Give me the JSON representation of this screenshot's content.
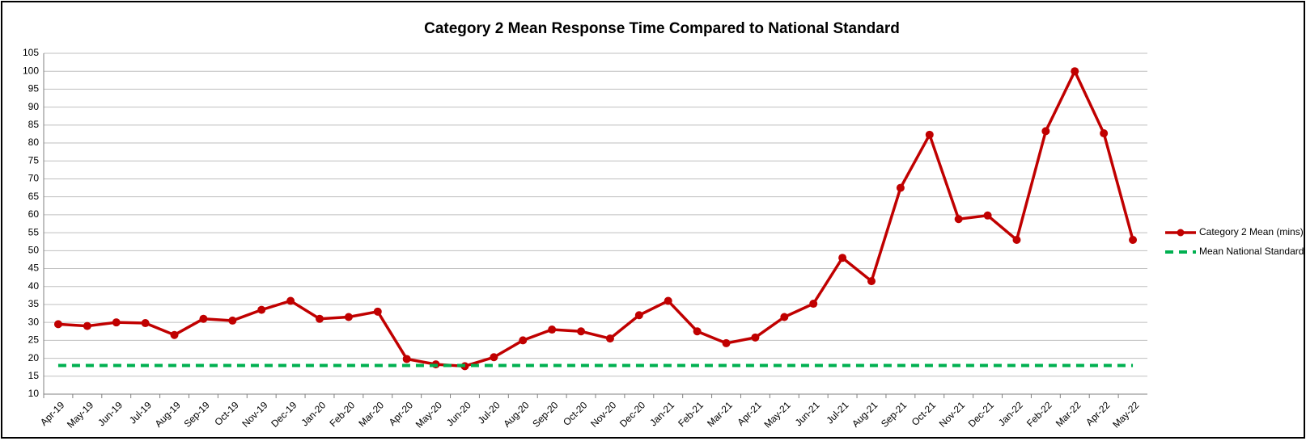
{
  "chart_data": {
    "type": "line",
    "title": "Category 2 Mean Response Time Compared to National Standard",
    "categories": [
      "Apr-19",
      "May-19",
      "Jun-19",
      "Jul-19",
      "Aug-19",
      "Sep-19",
      "Oct-19",
      "Nov-19",
      "Dec-19",
      "Jan-20",
      "Feb-20",
      "Mar-20",
      "Apr-20",
      "May-20",
      "Jun-20",
      "Jul-20",
      "Aug-20",
      "Sep-20",
      "Oct-20",
      "Nov-20",
      "Dec-20",
      "Jan-21",
      "Feb-21",
      "Mar-21",
      "Apr-21",
      "May-21",
      "Jun-21",
      "Jul-21",
      "Aug-21",
      "Sep-21",
      "Oct-21",
      "Nov-21",
      "Dec-21",
      "Jan-22",
      "Feb-22",
      "Mar-22",
      "Apr-22",
      "May-22"
    ],
    "series": [
      {
        "name": "Category 2 Mean (mins)",
        "color": "#c00000",
        "markers": true,
        "dashed": false,
        "values": [
          29.5,
          29,
          30,
          29.8,
          26.5,
          31,
          30.5,
          33.5,
          36,
          31,
          31.5,
          33,
          19.8,
          18.3,
          17.8,
          20.3,
          25,
          28,
          27.5,
          25.5,
          32,
          36,
          27.5,
          24.2,
          25.8,
          31.5,
          35.2,
          48,
          41.5,
          67.5,
          82.3,
          58.8,
          59.8,
          53,
          83.3,
          100,
          82.7,
          53
        ]
      },
      {
        "name": "Mean National Standard",
        "color": "#00b050",
        "markers": false,
        "dashed": true,
        "values": [
          18,
          18,
          18,
          18,
          18,
          18,
          18,
          18,
          18,
          18,
          18,
          18,
          18,
          18,
          18,
          18,
          18,
          18,
          18,
          18,
          18,
          18,
          18,
          18,
          18,
          18,
          18,
          18,
          18,
          18,
          18,
          18,
          18,
          18,
          18,
          18,
          18,
          18
        ]
      }
    ],
    "ylim": [
      10,
      105
    ],
    "yticks": [
      10,
      15,
      20,
      25,
      30,
      35,
      40,
      45,
      50,
      55,
      60,
      65,
      70,
      75,
      80,
      85,
      90,
      95,
      100,
      105
    ],
    "grid": true,
    "legend": "right"
  }
}
